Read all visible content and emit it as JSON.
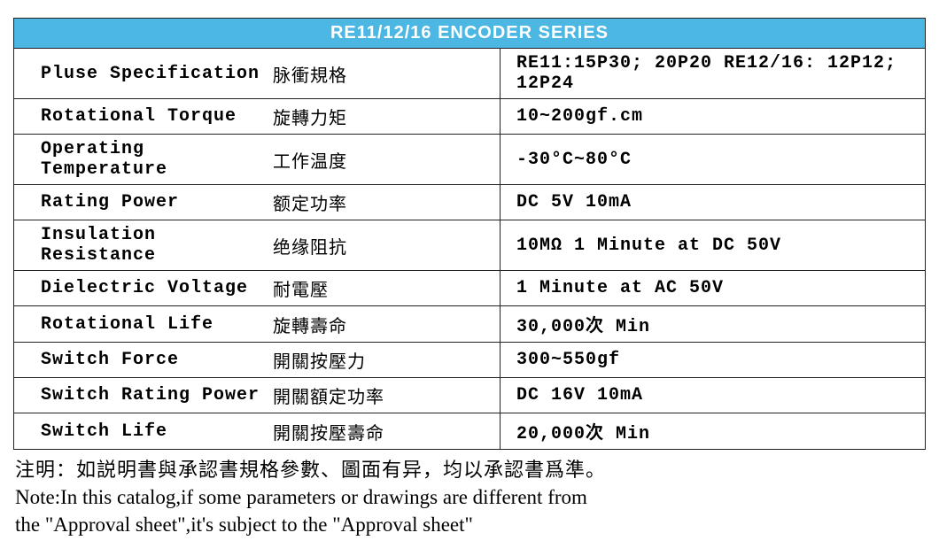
{
  "title": "RE11/12/16  ENCODER  SERIES",
  "header_bg": "#4cb7e3",
  "header_color": "#ffffff",
  "border_color": "#222222",
  "rows": [
    {
      "en": "Pluse Specification",
      "cn": "脉衝規格",
      "val": "RE11:15P30; 20P20   RE12/16: 12P12;  12P24"
    },
    {
      "en": "Rotational Torque",
      "cn": "旋轉力矩",
      "val": "10~200gf.cm"
    },
    {
      "en": "Operating Temperature",
      "cn": "工作温度",
      "val": "-30°C~80°C"
    },
    {
      "en": "Rating Power",
      "cn": "额定功率",
      "val": "DC 5V 10mA"
    },
    {
      "en": "Insulation Resistance",
      "cn": "绝缘阻抗",
      "val": "10MΩ 1 Minute at DC 50V"
    },
    {
      "en": "Dielectric Voltage",
      "cn": "耐電壓",
      "val": "1 Minute at AC 50V"
    },
    {
      "en": "Rotational Life",
      "cn": "旋轉壽命",
      "val": "30,000次 Min"
    },
    {
      "en": "Switch Force",
      "cn": "開關按壓力",
      "val": "300~550gf"
    },
    {
      "en": "Switch Rating Power",
      "cn": "開關額定功率",
      "val": "DC 16V 10mA"
    },
    {
      "en": "Switch Life",
      "cn": "開關按壓壽命",
      "val": "20,000次 Min"
    }
  ],
  "note_cn": "注明：如説明書與承認書規格參數、圖面有异，均以承認書爲準。",
  "note_en1": "Note:In this catalog,if some parameters or drawings are different from",
  "note_en2": "the \"Approval sheet\",it's subject to the \"Approval sheet\""
}
